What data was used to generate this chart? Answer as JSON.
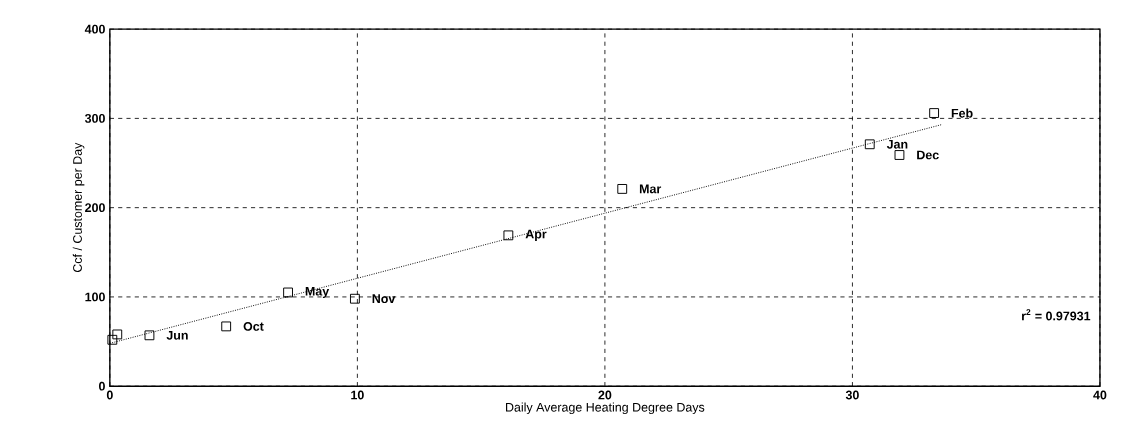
{
  "chart_data": {
    "type": "scatter",
    "xlabel": "Daily Average Heating Degree Days",
    "ylabel": "Ccf / Customer per Day",
    "x": [
      0.1,
      0.3,
      1.6,
      4.7,
      7.2,
      9.9,
      16.1,
      20.7,
      30.7,
      31.9,
      33.3
    ],
    "series": [
      {
        "color": "#000000",
        "marker": "square",
        "values": [
          52,
          58,
          57,
          67,
          105,
          98,
          169,
          221,
          271,
          259,
          306
        ]
      },
      {
        "type": "line",
        "color": "#000000",
        "marker": "none",
        "line_style": "dotted",
        "x": [
          0,
          33.6
        ],
        "values": [
          48,
          293
        ]
      }
    ],
    "xlim": [
      0,
      40
    ],
    "ylim": [
      0,
      400
    ],
    "xticks": [
      0,
      10,
      20,
      30,
      40
    ],
    "yticks": [
      0,
      100,
      200,
      300,
      400
    ],
    "grid": true,
    "annotations": [
      {
        "text": "Jun",
        "x": 1.6,
        "y": 57
      },
      {
        "text": "Oct",
        "x": 4.7,
        "y": 67
      },
      {
        "text": "May",
        "x": 7.2,
        "y": 105
      },
      {
        "text": "Nov",
        "x": 9.9,
        "y": 98
      },
      {
        "text": "Apr",
        "x": 16.1,
        "y": 169
      },
      {
        "text": "Mar",
        "x": 20.7,
        "y": 221
      },
      {
        "text": "Jan",
        "x": 30.7,
        "y": 271
      },
      {
        "text": "Dec",
        "x": 31.9,
        "y": 259
      },
      {
        "text": "Feb",
        "x": 33.3,
        "y": 306
      },
      "r$^{2}$ = 0.97931"
    ]
  }
}
